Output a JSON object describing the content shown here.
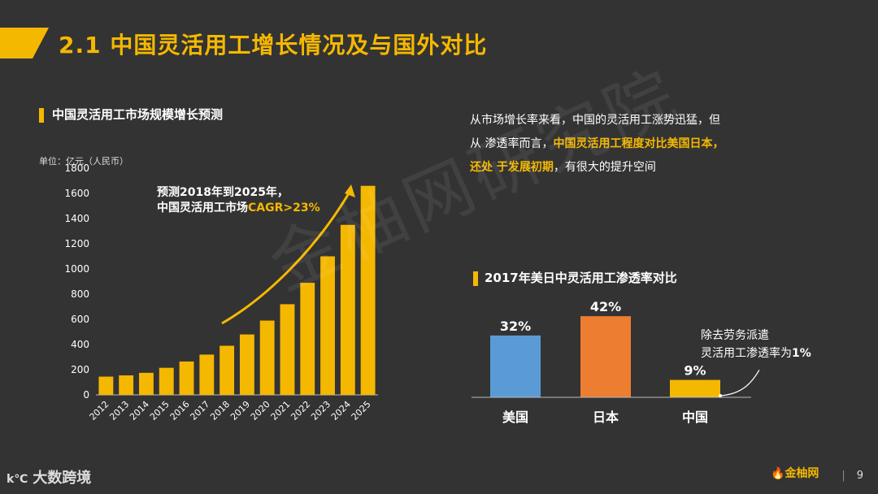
{
  "header": {
    "title": "2.1 中国灵活用工增长情况及与国外对比"
  },
  "left_section": {
    "title": "中国灵活用工市场规模增长预测",
    "unit": "单位：亿元（人民币）",
    "annotation_line1": "预测2018年到2025年，",
    "annotation_line2_prefix": "中国灵活用工市场",
    "annotation_line2_highlight": "CAGR>23%"
  },
  "right_text": {
    "line1": "从市场增长率来看，中国的灵活用工涨势迅猛，但",
    "line2_prefix": "从 渗透率而言，",
    "line2_highlight": "中国灵活用工程度对比美国日本，",
    "line3_highlight": "还处 于发展初期",
    "line3_suffix": "，有很大的提升空间"
  },
  "right_section": {
    "title": "2017年美日中灵活用工渗透率对比",
    "note_line1": "除去劳务派遣",
    "note_line2_prefix": "灵活用工渗透率为",
    "note_line2_value": "1%"
  },
  "watermark": "金柚网研究院",
  "footer": {
    "left_brand": "大数跨境",
    "right_logo": "金柚网",
    "page_number": "9"
  },
  "colors": {
    "accent": "#F5B800",
    "us": "#5B9BD5",
    "japan": "#ED7D31",
    "china": "#F5B800"
  },
  "chart_data": [
    {
      "type": "bar",
      "title": "中国灵活用工市场规模增长预测",
      "categories": [
        "2012",
        "2013",
        "2014",
        "2015",
        "2016",
        "2017",
        "2018",
        "2019",
        "2020",
        "2021",
        "2022",
        "2023",
        "2024",
        "2025"
      ],
      "values": [
        145,
        155,
        175,
        215,
        265,
        320,
        390,
        480,
        590,
        720,
        890,
        1100,
        1350,
        1660
      ],
      "ylabel": "单位：亿元（人民币）",
      "ylim": [
        0,
        1800
      ],
      "yticks": [
        0,
        200,
        400,
        600,
        800,
        1000,
        1200,
        1400,
        1600,
        1800
      ],
      "bar_color": "#F5B800"
    },
    {
      "type": "bar",
      "title": "2017年美日中灵活用工渗透率对比",
      "categories": [
        "美国",
        "日本",
        "中国"
      ],
      "values": [
        32,
        42,
        9
      ],
      "labels": [
        "32%",
        "42%",
        "9%"
      ],
      "colors": [
        "#5B9BD5",
        "#ED7D31",
        "#F5B800"
      ],
      "ylim": [
        0,
        45
      ]
    }
  ]
}
